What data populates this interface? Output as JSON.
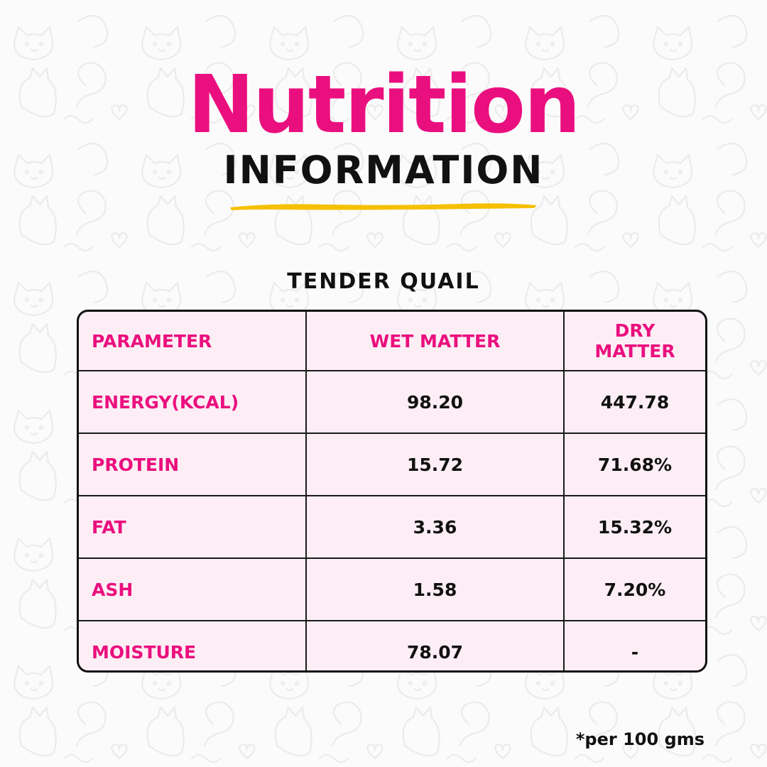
{
  "header": {
    "title": "Nutrition",
    "subtitle": "INFORMATION"
  },
  "product": {
    "name": "TENDER QUAIL"
  },
  "table": {
    "columns": [
      "PARAMETER",
      "WET MATTER",
      "DRY MATTER"
    ],
    "rows": [
      {
        "parameter": "ENERGY(KCAL)",
        "wet": "98.20",
        "dry": "447.78"
      },
      {
        "parameter": "PROTEIN",
        "wet": "15.72",
        "dry": "71.68%"
      },
      {
        "parameter": "FAT",
        "wet": "3.36",
        "dry": "15.32%"
      },
      {
        "parameter": "ASH",
        "wet": "1.58",
        "dry": "7.20%"
      },
      {
        "parameter": "MOISTURE",
        "wet": "78.07",
        "dry": "-"
      }
    ]
  },
  "footnote": "*per 100 gms",
  "colors": {
    "accent": "#ea0f7e",
    "text": "#111111",
    "underline": "#f5c000",
    "table_bg": "#fdeef5",
    "pattern": "#e6e6e6"
  },
  "icons": {
    "background": "cat-doodle-pattern-icon",
    "underline": "brush-stroke-icon"
  }
}
